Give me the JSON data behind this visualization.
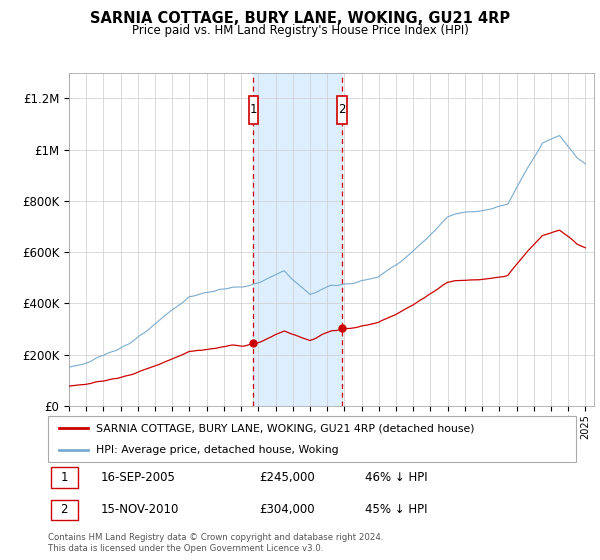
{
  "title": "SARNIA COTTAGE, BURY LANE, WOKING, GU21 4RP",
  "subtitle": "Price paid vs. HM Land Registry's House Price Index (HPI)",
  "ylabel_ticks": [
    "£0",
    "£200K",
    "£400K",
    "£600K",
    "£800K",
    "£1M",
    "£1.2M"
  ],
  "ytick_values": [
    0,
    200000,
    400000,
    600000,
    800000,
    1000000,
    1200000
  ],
  "ylim": [
    0,
    1300000
  ],
  "xlim_start": 1995.0,
  "xlim_end": 2025.5,
  "sale1_date": 2005.71,
  "sale1_price": 245000,
  "sale1_label": "1",
  "sale2_date": 2010.87,
  "sale2_price": 304000,
  "sale2_label": "2",
  "legend_red": "SARNIA COTTAGE, BURY LANE, WOKING, GU21 4RP (detached house)",
  "legend_blue": "HPI: Average price, detached house, Woking",
  "footer": "Contains HM Land Registry data © Crown copyright and database right 2024.\nThis data is licensed under the Open Government Licence v3.0.",
  "red_color": "#cc0000",
  "shade_color": "#ddeeff",
  "grid_color": "#cccccc",
  "hpi_color": "#7aabcf"
}
